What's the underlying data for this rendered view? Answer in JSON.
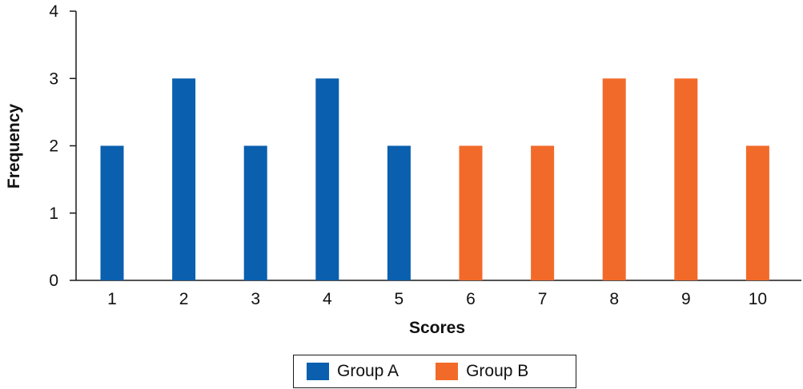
{
  "chart_data": {
    "type": "bar",
    "title": "",
    "xlabel": "Scores",
    "ylabel": "Frequency",
    "categories": [
      "1",
      "2",
      "3",
      "4",
      "5",
      "6",
      "7",
      "8",
      "9",
      "10"
    ],
    "ylim": [
      0,
      4
    ],
    "yticks": [
      0,
      1,
      2,
      3,
      4
    ],
    "grid": false,
    "legend_position": "bottom-center",
    "series": [
      {
        "name": "Group A",
        "color": "#0a5fae",
        "x": [
          "1",
          "2",
          "3",
          "4",
          "5"
        ],
        "values": [
          2,
          3,
          2,
          3,
          2
        ]
      },
      {
        "name": "Group B",
        "color": "#f26a2a",
        "x": [
          "6",
          "7",
          "8",
          "9",
          "10"
        ],
        "values": [
          2,
          2,
          3,
          3,
          2
        ]
      }
    ]
  }
}
